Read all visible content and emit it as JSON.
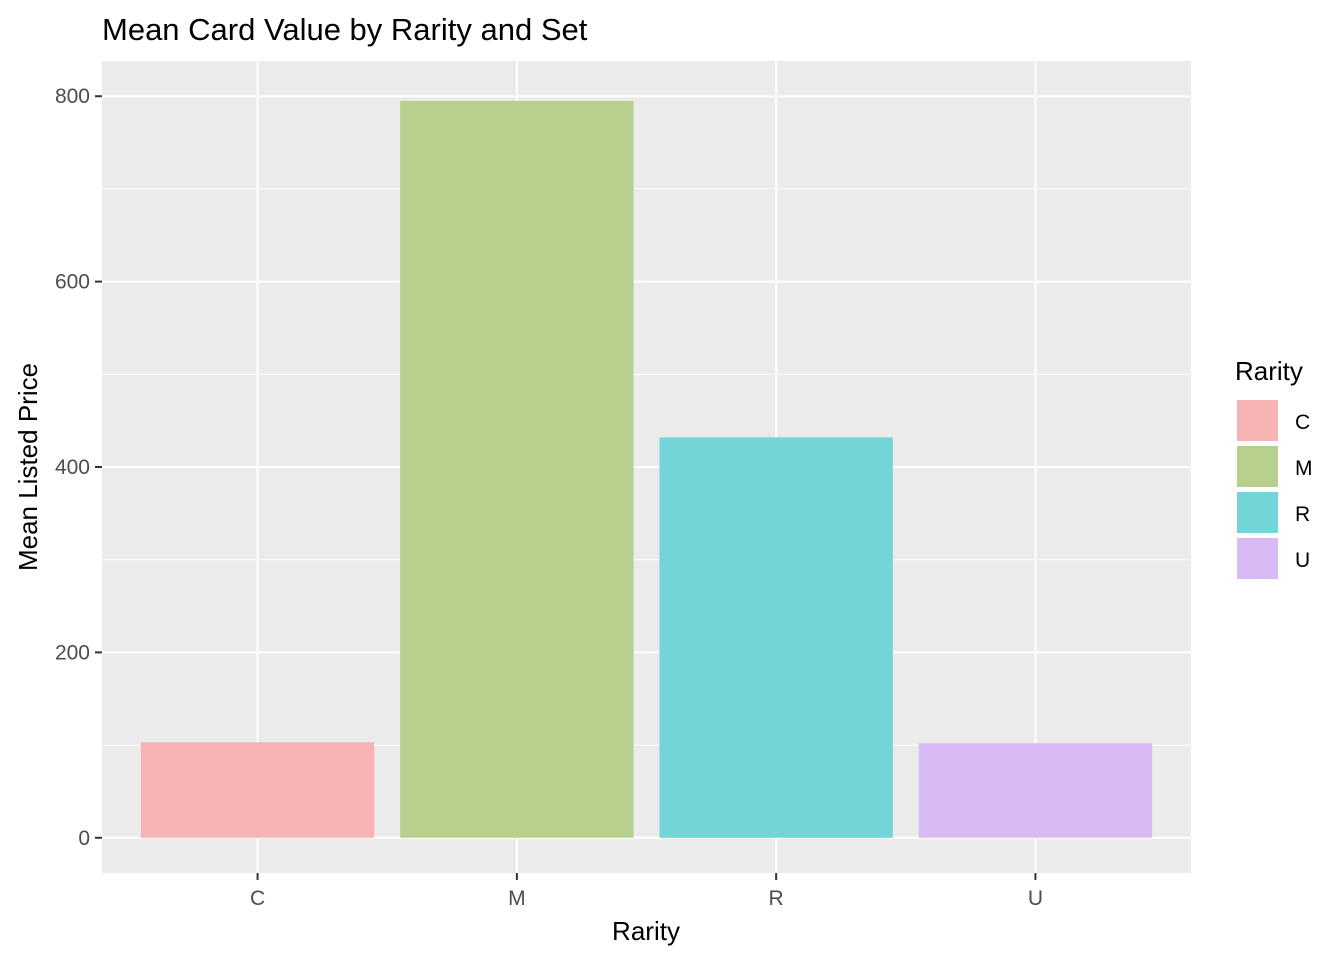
{
  "chart_data": {
    "type": "bar",
    "title": "Mean Card Value by Rarity and Set",
    "xlabel": "Rarity",
    "ylabel": "Mean Listed Price",
    "categories": [
      "C",
      "M",
      "R",
      "U"
    ],
    "values": [
      103,
      795,
      432,
      102
    ],
    "colors": [
      "#F8B4B4",
      "#B8CF8E",
      "#74D5D8",
      "#D8BBF5"
    ],
    "yticks": [
      0,
      200,
      400,
      600,
      800
    ],
    "ylim": [
      -38,
      838
    ],
    "grid": true,
    "panel_background": "#EBEBEB",
    "legend": {
      "title": "Rarity",
      "position": "right",
      "entries": [
        "C",
        "M",
        "R",
        "U"
      ]
    }
  }
}
